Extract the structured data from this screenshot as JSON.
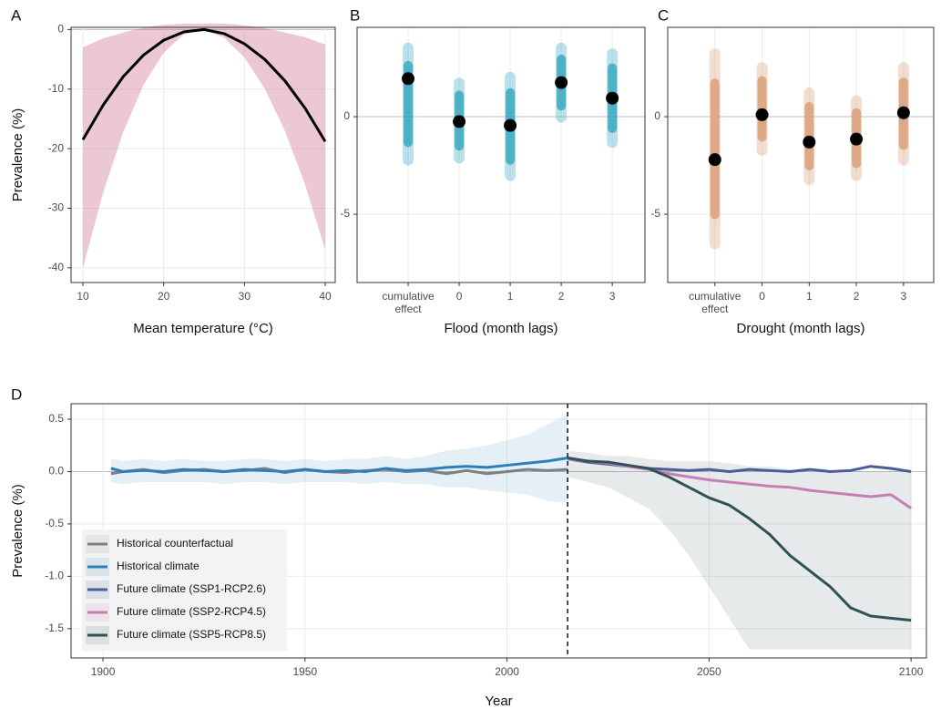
{
  "chart_data": [
    {
      "type": "line",
      "panel_label": "A",
      "xlabel": "Mean temperature (°C)",
      "ylabel": "Prevalence (%)",
      "xlim": [
        8.53,
        41.24
      ],
      "ylim": [
        -42.47,
        0.36
      ],
      "xticks": [
        10,
        20,
        30,
        40
      ],
      "yticks": [
        0,
        -10,
        -20,
        -30,
        -40
      ],
      "grid": true,
      "series": [
        {
          "color": "#000000",
          "band_color": "#c9647d",
          "x": [
            10,
            12.5,
            15,
            17.5,
            20,
            22.5,
            25,
            27.5,
            30,
            32.5,
            35,
            37.5,
            40
          ],
          "values": [
            -18.5,
            -12.7,
            -7.9,
            -4.3,
            -1.8,
            -0.4,
            0,
            -0.7,
            -2.4,
            -5.0,
            -8.6,
            -13.2,
            -18.8
          ],
          "lower": [
            -40,
            -27.4,
            -17.2,
            -9.3,
            -3.9,
            -0.8,
            0,
            -1.4,
            -4.7,
            -9.9,
            -17.0,
            -26.0,
            -37
          ],
          "upper": [
            -3,
            -1.5,
            -0.5,
            0.3,
            0.8,
            1,
            1,
            1,
            0.7,
            0.2,
            -0.5,
            -1.3,
            -2.5
          ]
        }
      ]
    },
    {
      "type": "dot",
      "panel_label": "B",
      "xlabel": "Flood (month lags)",
      "color": "#3aa8c1",
      "ylim": [
        -8.5,
        4.58
      ],
      "yticks": [
        -5,
        0
      ],
      "grid": true,
      "categories": [
        "cumulative effect",
        "0",
        "1",
        "2",
        "3"
      ],
      "values": [
        1.95,
        -0.25,
        -0.45,
        1.75,
        0.95
      ],
      "lower": [
        -2.5,
        -2.4,
        -3.3,
        -0.3,
        -1.6
      ],
      "upper": [
        3.8,
        2.0,
        2.3,
        3.8,
        3.5
      ]
    },
    {
      "type": "dot",
      "panel_label": "C",
      "xlabel": "Drought (month lags)",
      "color": "#d9a07a",
      "ylim": [
        -8.5,
        4.58
      ],
      "yticks": [
        -5,
        0
      ],
      "grid": true,
      "categories": [
        "cumulative effect",
        "0",
        "1",
        "2",
        "3"
      ],
      "values": [
        -2.2,
        0.1,
        -1.3,
        -1.15,
        0.2
      ],
      "lower": [
        -6.8,
        -2.0,
        -3.5,
        -3.3,
        -2.5
      ],
      "upper": [
        3.5,
        2.8,
        1.5,
        1.1,
        2.8
      ]
    },
    {
      "type": "line",
      "panel_label": "D",
      "xlabel": "Year",
      "ylabel": "Prevalence (%)",
      "xlim": [
        1892.1,
        2103.8
      ],
      "ylim": [
        -1.78,
        0.648
      ],
      "xticks": [
        1900,
        1950,
        2000,
        2050,
        2100
      ],
      "yticks": [
        0.5,
        {
          "value": 0,
          "label": "0.0"
        },
        -0.5,
        {
          "value": -1,
          "label": "-1.0"
        },
        -1.5
      ],
      "grid": true,
      "divider_x": 2015,
      "legend": "bottom-left",
      "series": [
        {
          "name": "Historical counterfactual",
          "color": "#808080",
          "x": [
            1902,
            1905,
            1910,
            1915,
            1920,
            1925,
            1930,
            1935,
            1940,
            1945,
            1950,
            1955,
            1960,
            1965,
            1970,
            1975,
            1980,
            1985,
            1990,
            1995,
            2000,
            2005,
            2010,
            2015
          ],
          "values": [
            -0.02,
            0.0,
            0.02,
            -0.01,
            0.01,
            0.02,
            0.0,
            0.01,
            0.03,
            -0.01,
            0.02,
            0.0,
            -0.01,
            0.01,
            0.02,
            0.0,
            0.01,
            -0.02,
            0.01,
            -0.02,
            0.0,
            0.02,
            0.01,
            0.02
          ]
        },
        {
          "name": "Historical climate",
          "color": "#2c7fb8",
          "x": [
            1902,
            1905,
            1910,
            1915,
            1920,
            1925,
            1930,
            1935,
            1940,
            1945,
            1950,
            1955,
            1960,
            1965,
            1970,
            1975,
            1980,
            1985,
            1990,
            1995,
            2000,
            2005,
            2010,
            2015
          ],
          "values": [
            0.03,
            0.0,
            0.01,
            0.0,
            0.02,
            0.01,
            0.0,
            0.02,
            0.01,
            0.0,
            0.02,
            0.0,
            0.01,
            0.0,
            0.03,
            0.01,
            0.02,
            0.04,
            0.05,
            0.04,
            0.06,
            0.08,
            0.1,
            0.13
          ],
          "lower": [
            -0.1,
            -0.12,
            -0.1,
            -0.1,
            -0.1,
            -0.1,
            -0.12,
            -0.1,
            -0.1,
            -0.12,
            -0.1,
            -0.1,
            -0.1,
            -0.12,
            -0.1,
            -0.12,
            -0.12,
            -0.15,
            -0.15,
            -0.18,
            -0.2,
            -0.22,
            -0.28,
            -0.3
          ],
          "upper": [
            0.12,
            0.1,
            0.12,
            0.1,
            0.12,
            0.1,
            0.1,
            0.12,
            0.12,
            0.1,
            0.12,
            0.1,
            0.12,
            0.12,
            0.15,
            0.12,
            0.15,
            0.2,
            0.22,
            0.25,
            0.3,
            0.35,
            0.45,
            0.55
          ]
        },
        {
          "name": "Future climate (SSP1-RCP2.6)",
          "color": "#4a5d96",
          "x": [
            2015,
            2020,
            2025,
            2030,
            2035,
            2040,
            2045,
            2050,
            2055,
            2060,
            2065,
            2070,
            2075,
            2080,
            2085,
            2090,
            2095,
            2100
          ],
          "values": [
            0.12,
            0.09,
            0.07,
            0.05,
            0.03,
            0.02,
            0.01,
            0.02,
            0.0,
            0.02,
            0.01,
            0.0,
            0.02,
            0.0,
            0.01,
            0.05,
            0.03,
            0.0
          ]
        },
        {
          "name": "Future climate (SSP2-RCP4.5)",
          "color": "#c57fb5",
          "x": [
            2015,
            2020,
            2025,
            2030,
            2035,
            2040,
            2045,
            2050,
            2055,
            2060,
            2065,
            2070,
            2075,
            2080,
            2085,
            2090,
            2095,
            2100
          ],
          "values": [
            0.12,
            0.1,
            0.08,
            0.05,
            0.02,
            -0.02,
            -0.05,
            -0.08,
            -0.1,
            -0.12,
            -0.14,
            -0.15,
            -0.18,
            -0.2,
            -0.22,
            -0.24,
            -0.22,
            -0.35
          ]
        },
        {
          "name": "Future climate (SSP5-RCP8.5)",
          "color": "#2f5355",
          "x": [
            2015,
            2020,
            2025,
            2030,
            2035,
            2040,
            2045,
            2050,
            2055,
            2060,
            2065,
            2070,
            2075,
            2080,
            2085,
            2090,
            2095,
            2100
          ],
          "values": [
            0.13,
            0.1,
            0.09,
            0.06,
            0.03,
            -0.05,
            -0.15,
            -0.25,
            -0.32,
            -0.45,
            -0.6,
            -0.8,
            -0.95,
            -1.1,
            -1.3,
            -1.38,
            -1.4,
            -1.42
          ],
          "lower": [
            -0.05,
            -0.1,
            -0.15,
            -0.25,
            -0.35,
            -0.55,
            -0.8,
            -1.1,
            -1.4,
            -1.7,
            -1.7,
            -1.7,
            -1.7,
            -1.7,
            -1.7,
            -1.7,
            -1.7,
            -1.7
          ],
          "upper": [
            0.2,
            0.18,
            0.15,
            0.15,
            0.12,
            0.1,
            0.1,
            0.1,
            0.08,
            0.05,
            0.05,
            0.02,
            0.0,
            0.0,
            0.0,
            0.0,
            0.0,
            0.0
          ]
        }
      ]
    }
  ]
}
